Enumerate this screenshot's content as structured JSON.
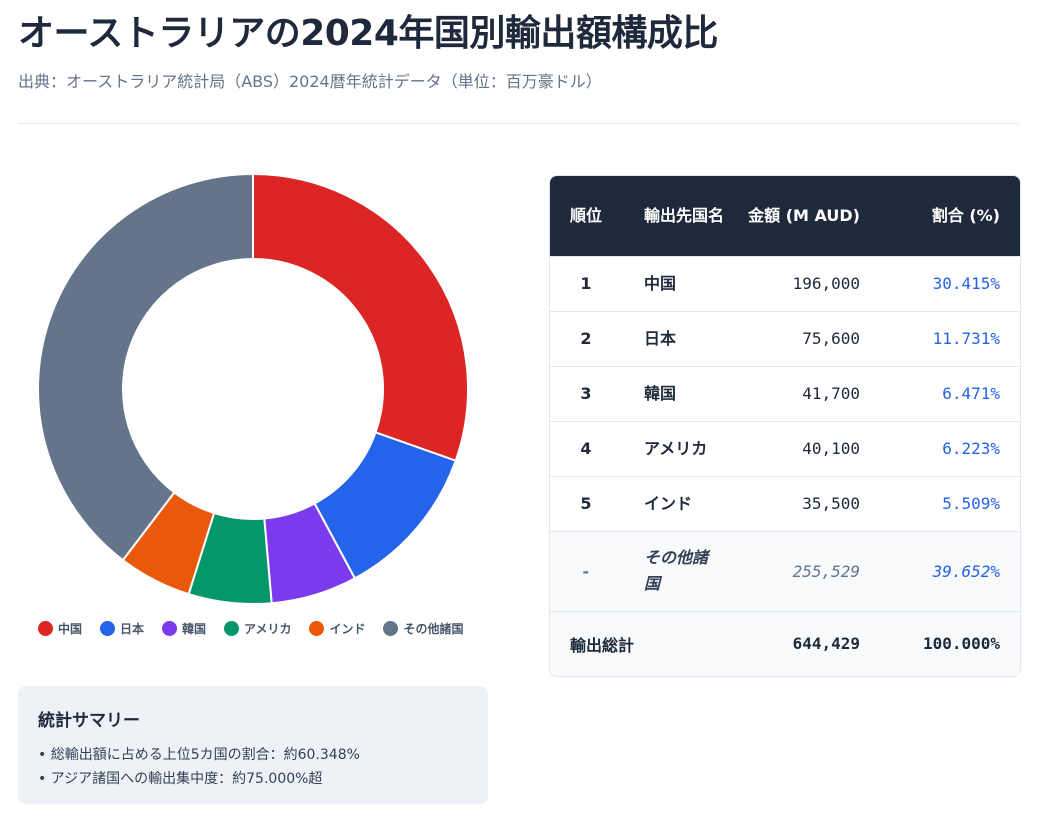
{
  "page": {
    "title": "オーストラリアの2024年国別輸出額構成比",
    "subtitle": "出典：オーストラリア統計局（ABS）2024暦年統計データ（単位：百万豪ドル）"
  },
  "table": {
    "headers": {
      "rank": "順位",
      "name": "輸出先国名",
      "amount": "金額 (M AUD)",
      "share": "割合 (%)"
    },
    "rows": [
      {
        "rank": "1",
        "name": "中国",
        "amount": "196,000",
        "share": "30.415%"
      },
      {
        "rank": "2",
        "name": "日本",
        "amount": "75,600",
        "share": "11.731%"
      },
      {
        "rank": "3",
        "name": "韓国",
        "amount": "41,700",
        "share": "6.471%"
      },
      {
        "rank": "4",
        "name": "アメリカ",
        "amount": "40,100",
        "share": "6.223%"
      },
      {
        "rank": "5",
        "name": "インド",
        "amount": "35,500",
        "share": "5.509%"
      }
    ],
    "other": {
      "rank": "-",
      "name": "その他諸国",
      "amount": "255,529",
      "share": "39.652%"
    },
    "total": {
      "label": "輸出総計",
      "amount": "644,429",
      "share": "100.000%"
    }
  },
  "summary": {
    "title": "統計サマリー",
    "lines": [
      "• 総輸出額に占める上位5カ国の割合：約60.348%",
      "• アジア諸国への輸出集中度：約75.000%超"
    ]
  },
  "chart_data": {
    "type": "pie",
    "variant": "donut",
    "title": "",
    "categories": [
      "中国",
      "日本",
      "韓国",
      "アメリカ",
      "インド",
      "その他諸国"
    ],
    "values": [
      196000,
      75600,
      41700,
      40100,
      35500,
      255529
    ],
    "colors": [
      "#dc2626",
      "#2563eb",
      "#7c3aed",
      "#059669",
      "#ea580c",
      "#64748b"
    ],
    "legend_position": "bottom"
  }
}
